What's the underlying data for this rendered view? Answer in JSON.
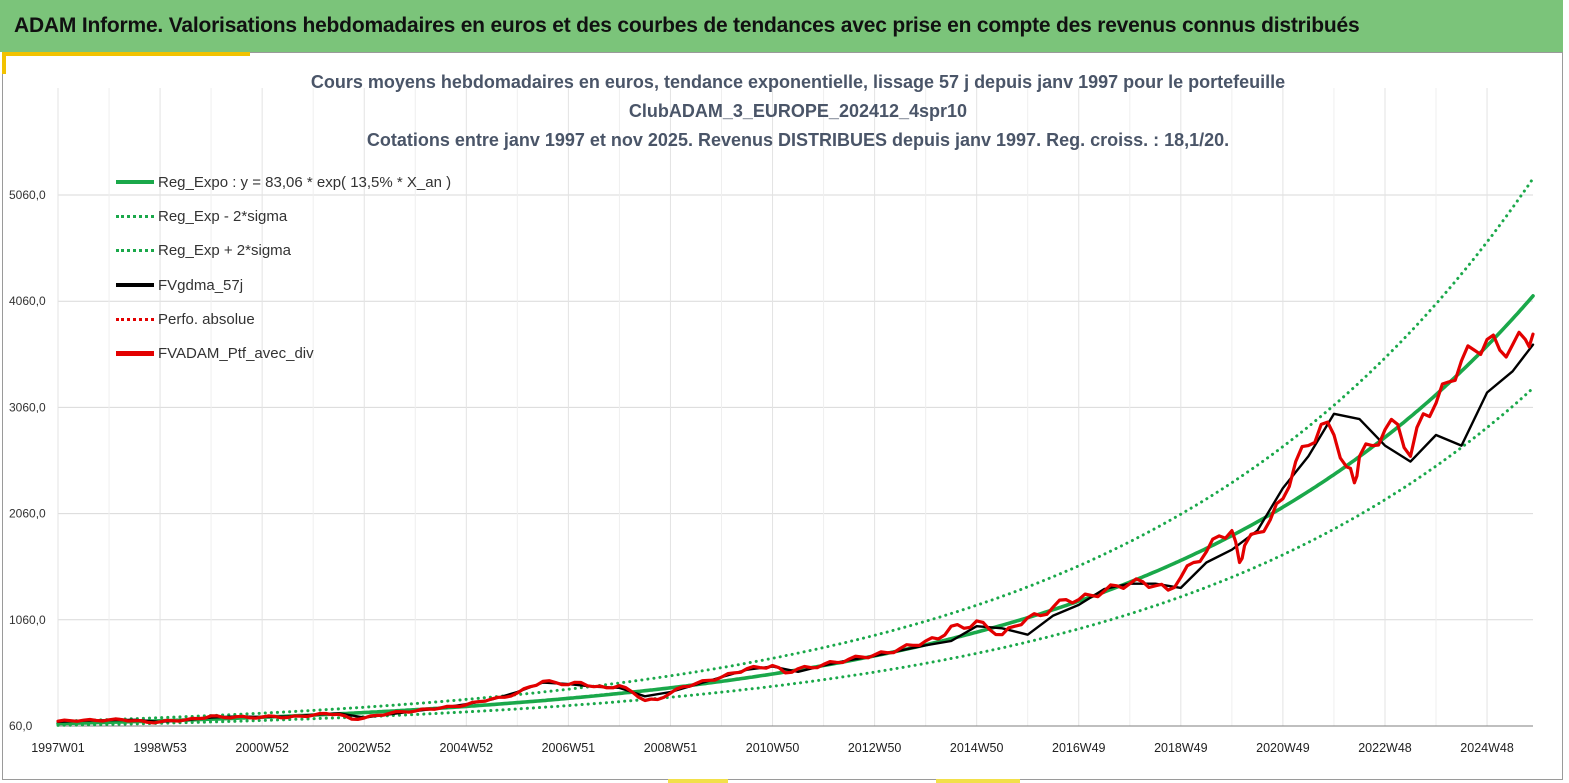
{
  "banner": {
    "title": "ADAM Informe. Valorisations hebdomadaires en euros et des courbes de tendances avec prise en compte des revenus connus distribués"
  },
  "colors": {
    "banner_bg": "#7bc47a",
    "trend_green": "#1aa84a",
    "band_green": "#1aa84a",
    "smooth_black": "#000000",
    "portfolio_red": "#e30000",
    "accent_yellow": "#f2c200"
  },
  "chart_data": {
    "type": "line",
    "title": "Cours moyens hebdomadaires  en euros, tendance exponentielle, lissage 57 j depuis janv 1997 pour le portefeuille",
    "subtitle": "ClubADAM_3_EUROPE_202412_4spr10",
    "subtitle2": "Cotations  entre janv 1997 et nov 2025. Revenus DISTRIBUES depuis janv 1997. Reg. croiss. : 18,1/20.",
    "xlabel": "",
    "ylabel": "",
    "ylim": [
      60,
      5560
    ],
    "xlim": [
      1997.0,
      2025.9
    ],
    "yticks": [
      60,
      1060,
      2060,
      3060,
      4060,
      5060
    ],
    "ytick_labels": [
      "60,0",
      "1060,0",
      "2060,0",
      "3060,0",
      "4060,0",
      "5060,0"
    ],
    "xticks": [
      1997.0,
      1999.0,
      2001.0,
      2003.0,
      2005.0,
      2007.0,
      2009.0,
      2011.0,
      2013.0,
      2015.0,
      2017.0,
      2019.0,
      2021.0,
      2023.0,
      2025.0
    ],
    "xtick_labels": [
      "1997W01",
      "1998W53",
      "2000W52",
      "2002W52",
      "2004W52",
      "2006W51",
      "2008W51",
      "2010W50",
      "2012W50",
      "2014W50",
      "2016W49",
      "2018W49",
      "2020W49",
      "2022W48",
      "2024W48"
    ],
    "grid": true,
    "legend_position": "top-left",
    "series": [
      {
        "name": "Reg_Expo : y = 83,06 * exp( 13,5% *  X_an )",
        "style": "solid-thick",
        "color": "#1aa84a",
        "model": {
          "a": 83.06,
          "rate": 0.135,
          "start": 1997.0
        }
      },
      {
        "name": "Reg_Exp - 2*sigma",
        "style": "dotted",
        "color": "#1aa84a",
        "model": {
          "a": 65.5,
          "rate": 0.135,
          "start": 1997.0
        }
      },
      {
        "name": "Reg_Exp + 2*sigma",
        "style": "dotted",
        "color": "#1aa84a",
        "model": {
          "a": 105.4,
          "rate": 0.135,
          "start": 1997.0
        }
      },
      {
        "name": "FVgdma_57j",
        "style": "solid",
        "color": "#000000",
        "x": [
          1997.0,
          1997.5,
          1998.0,
          1998.5,
          1999.0,
          1999.5,
          2000.0,
          2000.5,
          2001.0,
          2001.5,
          2002.0,
          2002.5,
          2003.0,
          2003.5,
          2004.0,
          2004.5,
          2005.0,
          2005.5,
          2006.0,
          2006.5,
          2007.0,
          2007.5,
          2008.0,
          2008.5,
          2009.0,
          2009.5,
          2010.0,
          2010.5,
          2011.0,
          2011.5,
          2012.0,
          2012.5,
          2013.0,
          2013.5,
          2014.0,
          2014.5,
          2015.0,
          2015.5,
          2016.0,
          2016.5,
          2017.0,
          2017.5,
          2018.0,
          2018.5,
          2019.0,
          2019.5,
          2020.0,
          2020.5,
          2021.0,
          2021.5,
          2022.0,
          2022.5,
          2023.0,
          2023.5,
          2024.0,
          2024.5,
          2025.0,
          2025.5,
          2025.9
        ],
        "y": [
          100,
          110,
          115,
          118,
          100,
          115,
          140,
          150,
          145,
          150,
          165,
          180,
          140,
          170,
          200,
          230,
          265,
          310,
          380,
          470,
          455,
          430,
          420,
          340,
          380,
          450,
          520,
          590,
          620,
          570,
          630,
          680,
          720,
          770,
          820,
          860,
          1000,
          980,
          920,
          1100,
          1200,
          1350,
          1400,
          1400,
          1360,
          1600,
          1720,
          1900,
          2300,
          2600,
          3000,
          2950,
          2700,
          2550,
          2800,
          2700,
          3200,
          3400,
          3650
        ]
      },
      {
        "name": "Perfo. absolue",
        "style": "dotted",
        "color": "#e30000",
        "x": [],
        "y": []
      },
      {
        "name": "FVADAM_Ptf_avec_div",
        "style": "solid-thick",
        "color": "#e30000",
        "x": [
          1997.0,
          1997.25,
          1997.5,
          1997.75,
          1998.0,
          1998.25,
          1998.5,
          1998.75,
          1999.0,
          1999.25,
          1999.5,
          1999.75,
          2000.0,
          2000.25,
          2000.5,
          2000.75,
          2001.0,
          2001.25,
          2001.5,
          2001.75,
          2002.0,
          2002.25,
          2002.5,
          2002.75,
          2003.0,
          2003.25,
          2003.5,
          2003.75,
          2004.0,
          2004.25,
          2004.5,
          2004.75,
          2005.0,
          2005.25,
          2005.5,
          2005.75,
          2006.0,
          2006.25,
          2006.5,
          2006.75,
          2007.0,
          2007.25,
          2007.5,
          2007.75,
          2008.0,
          2008.25,
          2008.5,
          2008.75,
          2009.0,
          2009.25,
          2009.5,
          2009.75,
          2010.0,
          2010.25,
          2010.5,
          2010.75,
          2011.0,
          2011.25,
          2011.5,
          2011.75,
          2012.0,
          2012.25,
          2012.5,
          2012.75,
          2013.0,
          2013.25,
          2013.5,
          2013.75,
          2014.0,
          2014.25,
          2014.5,
          2014.75,
          2015.0,
          2015.25,
          2015.5,
          2015.75,
          2016.0,
          2016.25,
          2016.5,
          2016.75,
          2017.0,
          2017.25,
          2017.5,
          2017.75,
          2018.0,
          2018.25,
          2018.5,
          2018.75,
          2019.0,
          2019.25,
          2019.5,
          2019.75,
          2020.0,
          2020.15,
          2020.25,
          2020.5,
          2020.75,
          2021.0,
          2021.25,
          2021.5,
          2021.75,
          2022.0,
          2022.25,
          2022.4,
          2022.5,
          2022.75,
          2023.0,
          2023.25,
          2023.5,
          2023.75,
          2024.0,
          2024.25,
          2024.5,
          2024.75,
          2025.0,
          2025.25,
          2025.5,
          2025.75,
          2025.9
        ],
        "y": [
          105,
          110,
          115,
          112,
          118,
          120,
          110,
          95,
          100,
          110,
          118,
          130,
          155,
          140,
          148,
          138,
          145,
          150,
          140,
          152,
          162,
          178,
          170,
          125,
          135,
          160,
          180,
          195,
          200,
          220,
          230,
          245,
          260,
          290,
          315,
          330,
          370,
          430,
          480,
          470,
          450,
          470,
          430,
          420,
          440,
          380,
          300,
          310,
          370,
          430,
          460,
          490,
          520,
          560,
          600,
          610,
          630,
          560,
          600,
          610,
          640,
          660,
          690,
          710,
          730,
          750,
          790,
          820,
          860,
          880,
          1000,
          980,
          1050,
          970,
          920,
          1000,
          1080,
          1100,
          1180,
          1250,
          1250,
          1290,
          1330,
          1380,
          1400,
          1420,
          1380,
          1340,
          1460,
          1600,
          1700,
          1850,
          1900,
          1600,
          1760,
          1880,
          2000,
          2200,
          2550,
          2700,
          2900,
          2800,
          2500,
          2350,
          2600,
          2700,
          2850,
          2900,
          2600,
          3000,
          3100,
          3300,
          3500,
          3600,
          3700,
          3600,
          3650,
          3700,
          3750
        ]
      }
    ]
  }
}
